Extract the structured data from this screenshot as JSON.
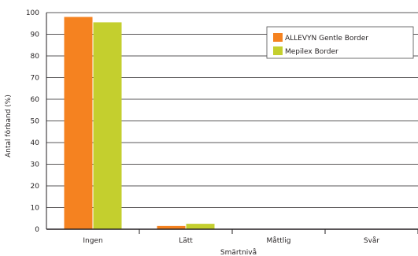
{
  "chart_data": {
    "type": "bar",
    "title": "",
    "xlabel": "Smärtnivå",
    "ylabel": "Antal förband (%)",
    "categories": [
      "Ingen",
      "Lätt",
      "Måttlig",
      "Svår"
    ],
    "ylim": [
      0,
      100
    ],
    "yticks": [
      "0",
      "10",
      "20",
      "30",
      "40",
      "50",
      "60",
      "70",
      "80",
      "90",
      "100"
    ],
    "grid": true,
    "legend": "top-right",
    "series": [
      {
        "name": "ALLEVYN Gentle Border",
        "color": "#f58220",
        "values": [
          98,
          1.5,
          0,
          0
        ]
      },
      {
        "name": "Mepilex Border",
        "color": "#c4cf2e",
        "values": [
          95.5,
          2.5,
          0,
          0
        ]
      }
    ]
  }
}
